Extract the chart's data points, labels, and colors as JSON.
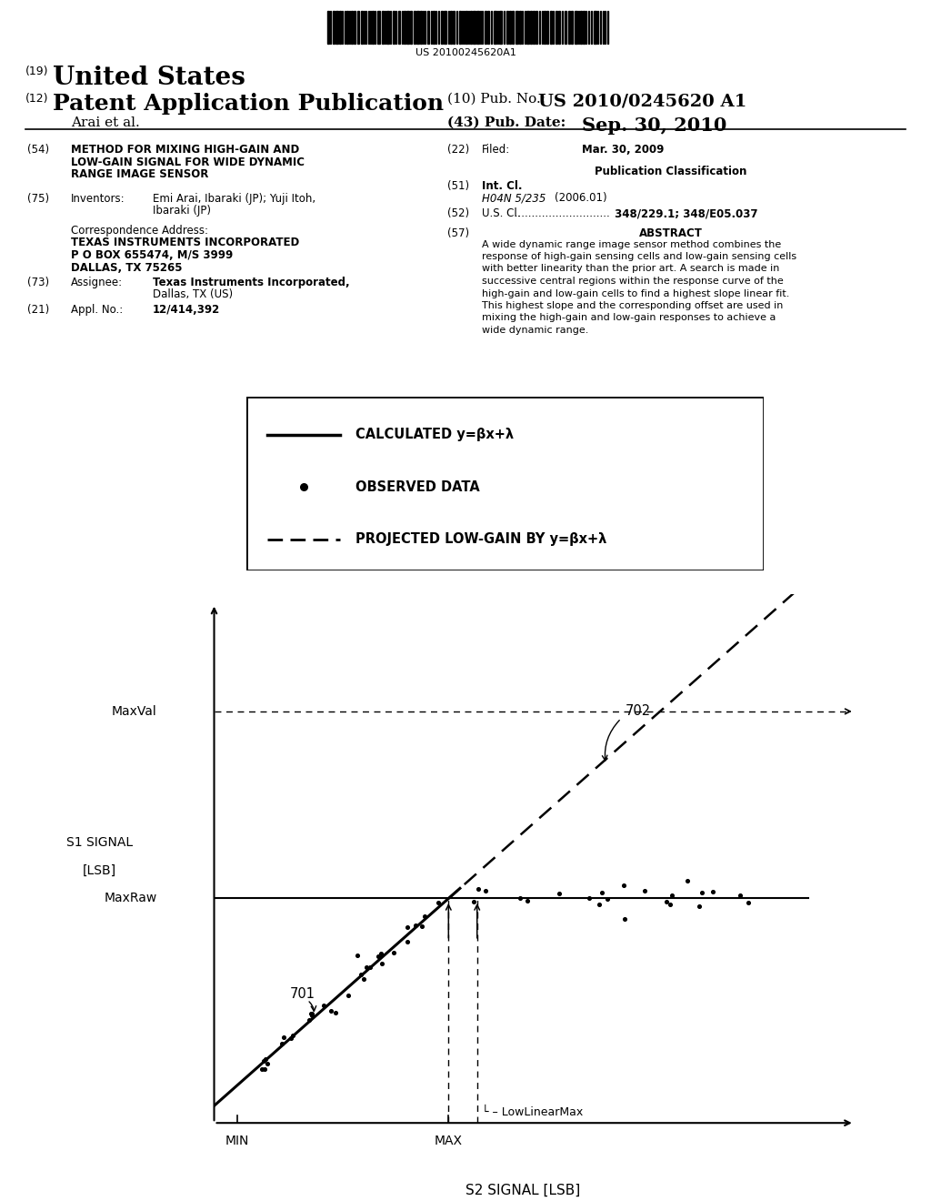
{
  "bg_color": "#ffffff",
  "barcode_text": "US 20100245620A1",
  "title_19": "(19)",
  "title_us": "United States",
  "title_12": "(12)",
  "title_pub": "Patent Application Publication",
  "title_10_a": "(10) Pub. No.:",
  "title_10_b": "US 2010/0245620 A1",
  "title_arai": "Arai et al.",
  "title_43": "(43) Pub. Date:",
  "title_date": "Sep. 30, 2010",
  "field54_label": "(54)",
  "field54_text": "METHOD FOR MIXING HIGH-GAIN AND\nLOW-GAIN SIGNAL FOR WIDE DYNAMIC\nRANGE IMAGE SENSOR",
  "field22_label": "(22)",
  "field22_text": "Filed:",
  "field22_date": "Mar. 30, 2009",
  "pub_class_label": "Publication Classification",
  "field51_label": "(51)",
  "field51_text": "Int. Cl.",
  "field51_class": "H04N 5/235",
  "field51_year": "(2006.01)",
  "field52_label": "(52)",
  "field52_us": "U.S. Cl.",
  "field52_dots": " ............................",
  "field52_val": " 348/229.1; 348/E05.037",
  "field57_label": "(57)",
  "field57_title": "ABSTRACT",
  "field57_line1": "A wide dynamic range image sensor method combines the",
  "field57_line2": "response of high-gain sensing cells and low-gain sensing cells",
  "field57_line3": "with better linearity than the prior art. A search is made in",
  "field57_line4": "successive central regions within the response curve of the",
  "field57_line5": "high-gain and low-gain cells to find a highest slope linear fit.",
  "field57_line6": "This highest slope and the corresponding offset are used in",
  "field57_line7": "mixing the high-gain and low-gain responses to achieve a",
  "field57_line8": "wide dynamic range.",
  "field75_label": "(75)",
  "field75_title": "Inventors:",
  "field75_line1": "Emi Arai, Ibaraki (JP); Yuji Itoh,",
  "field75_line2": "Ibaraki (JP)",
  "corr_title": "Correspondence Address:",
  "corr_line1": "TEXAS INSTRUMENTS INCORPORATED",
  "corr_line2": "P O BOX 655474, M/S 3999",
  "corr_line3": "DALLAS, TX 75265",
  "field73_label": "(73)",
  "field73_title": "Assignee:",
  "field73_line1": "Texas Instruments Incorporated,",
  "field73_line2": "Dallas, TX (US)",
  "field21_label": "(21)",
  "field21_title": "Appl. No.:",
  "field21_text": "12/414,392",
  "legend_calc_text": "CALCULATED y=βx+λ",
  "legend_obs_text": "OBSERVED DATA",
  "legend_proj_text": "PROJECTED LOW-GAIN BY y=βx+λ",
  "ylabel1": "S1 SIGNAL",
  "ylabel2": "[LSB]",
  "xlabel": "S2 SIGNAL [LSB]",
  "label_maxval": "MaxVal",
  "label_maxraw": "MaxRaw",
  "label_min": "MIN",
  "label_max": "MAX",
  "label_lowlinearmax": "LowLinearMax",
  "label_701": "701",
  "label_702": "702"
}
